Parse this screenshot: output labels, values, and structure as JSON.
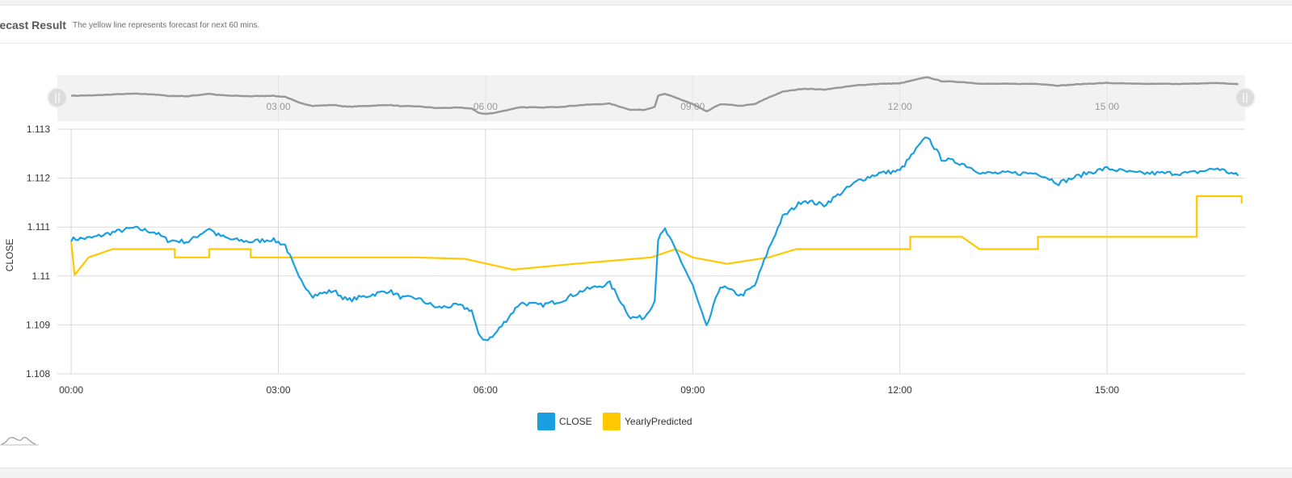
{
  "header": {
    "title": "recast Result",
    "subtitle": "The yellow line represents forecast for next 60 mins."
  },
  "colors": {
    "close": "#1a9fe0",
    "predicted": "#ffc800",
    "navigator": "#999999",
    "grid": "#d9d9d9"
  },
  "chart_data": {
    "type": "line",
    "title": "",
    "xlabel": "",
    "ylabel": "CLOSE",
    "x_ticks": [
      "00:00",
      "03:00",
      "06:00",
      "09:00",
      "12:00",
      "15:00"
    ],
    "y_ticks": [
      "1.113",
      "1.112",
      "1.111",
      "1.11",
      "1.109",
      "1.108"
    ],
    "xlim_hours": [
      -0.2,
      17.0
    ],
    "ylim": [
      1.108,
      1.113
    ],
    "grid": true,
    "legend_position": "bottom-center",
    "series": [
      {
        "name": "CLOSE",
        "color": "#1a9fe0",
        "x": [
          0.0,
          0.3,
          0.6,
          0.9,
          1.2,
          1.4,
          1.7,
          2.0,
          2.1,
          2.3,
          2.6,
          2.9,
          3.1,
          3.3,
          3.5,
          3.8,
          4.0,
          4.3,
          4.6,
          4.8,
          5.0,
          5.3,
          5.6,
          5.8,
          5.9,
          6.0,
          6.1,
          6.3,
          6.5,
          6.8,
          7.1,
          7.4,
          7.8,
          8.1,
          8.3,
          8.45,
          8.5,
          8.6,
          8.8,
          9.0,
          9.2,
          9.4,
          9.7,
          9.9,
          10.1,
          10.3,
          10.6,
          10.9,
          11.2,
          11.4,
          11.7,
          12.0,
          12.3,
          12.4,
          12.6,
          12.9,
          13.2,
          13.6,
          14.0,
          14.3,
          14.7,
          15.0,
          15.4,
          15.8,
          16.2,
          16.6,
          16.9
        ],
        "y": [
          1.11075,
          1.11078,
          1.11089,
          1.11098,
          1.1109,
          1.11073,
          1.1107,
          1.11098,
          1.11085,
          1.11075,
          1.1107,
          1.11075,
          1.11063,
          1.10995,
          1.1096,
          1.1097,
          1.1095,
          1.1096,
          1.1097,
          1.10955,
          1.10955,
          1.10935,
          1.1094,
          1.1093,
          1.10878,
          1.1087,
          1.10875,
          1.1091,
          1.10945,
          1.1094,
          1.1095,
          1.1097,
          1.10985,
          1.10915,
          1.10915,
          1.1095,
          1.11075,
          1.11095,
          1.1104,
          1.1098,
          1.10895,
          1.1098,
          1.1096,
          1.1098,
          1.11055,
          1.1112,
          1.11155,
          1.11145,
          1.11175,
          1.11195,
          1.1121,
          1.11215,
          1.1127,
          1.11285,
          1.1124,
          1.1123,
          1.1121,
          1.1121,
          1.1121,
          1.1119,
          1.1121,
          1.1122,
          1.1121,
          1.1121,
          1.1121,
          1.1122,
          1.11205
        ]
      },
      {
        "name": "YearlyPredicted",
        "color": "#ffc800",
        "x": [
          0.0,
          0.05,
          0.05,
          0.25,
          0.25,
          0.6,
          0.6,
          1.5,
          1.5,
          2.0,
          2.0,
          2.6,
          2.6,
          3.4,
          3.4,
          4.5,
          4.5,
          5.0,
          5.0,
          5.7,
          5.7,
          6.4,
          6.4,
          7.3,
          7.3,
          8.4,
          8.4,
          8.75,
          8.75,
          9.0,
          9.0,
          9.5,
          9.5,
          10.1,
          10.1,
          10.5,
          10.5,
          12.15,
          12.15,
          12.9,
          12.9,
          13.15,
          13.15,
          14.0,
          14.0,
          15.1,
          15.1,
          16.3,
          16.3,
          16.95,
          16.95
        ],
        "y": [
          1.1107,
          1.11002,
          1.11002,
          1.11038,
          1.11038,
          1.11055,
          1.11055,
          1.11055,
          1.11038,
          1.11038,
          1.11055,
          1.11055,
          1.11038,
          1.11038,
          1.11038,
          1.11038,
          1.11038,
          1.11038,
          1.11038,
          1.11035,
          1.11035,
          1.11013,
          1.11013,
          1.11025,
          1.11025,
          1.11038,
          1.11038,
          1.11055,
          1.11055,
          1.11038,
          1.11038,
          1.11025,
          1.11025,
          1.11038,
          1.11038,
          1.11055,
          1.11055,
          1.11055,
          1.1108,
          1.1108,
          1.1108,
          1.11055,
          1.11055,
          1.11055,
          1.1108,
          1.1108,
          1.1108,
          1.1108,
          1.11163,
          1.11163,
          1.11148
        ]
      }
    ]
  },
  "legend": [
    {
      "label": "CLOSE",
      "color": "#1a9fe0"
    },
    {
      "label": "YearlyPredicted",
      "color": "#ffc800"
    }
  ]
}
